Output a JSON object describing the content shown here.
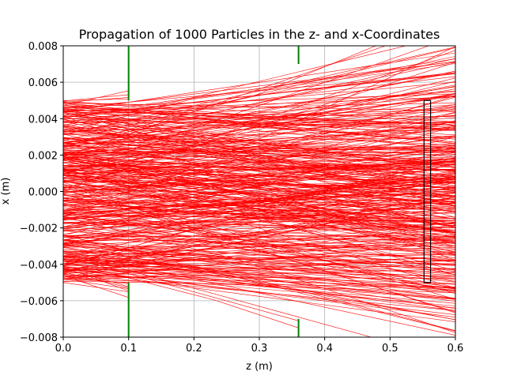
{
  "chart_data": {
    "type": "line",
    "title": "Propagation of 1000 Particles in the z- and x-Coordinates",
    "xlabel": "z (m)",
    "ylabel": "x (m)",
    "xlim": [
      0.0,
      0.6
    ],
    "ylim": [
      -0.008,
      0.008
    ],
    "xticks": [
      "0.0",
      "0.1",
      "0.2",
      "0.3",
      "0.4",
      "0.5",
      "0.6"
    ],
    "yticks": [
      "0.008",
      "0.006",
      "0.004",
      "0.002",
      "0.000",
      "−0.002",
      "−0.004",
      "−0.006",
      "−0.008"
    ],
    "grid": true,
    "series": [
      {
        "style": "particle trajectories",
        "color": "#ff0000",
        "count": 1000,
        "initial_x_range": [
          -0.005,
          0.005
        ],
        "divergence_range": [
          -0.02,
          0.02
        ]
      }
    ],
    "apertures": [
      {
        "z": 0.1,
        "opening": [
          -0.005,
          0.005
        ],
        "color": "#008000"
      },
      {
        "z": 0.36,
        "opening": [
          -0.007,
          0.007
        ],
        "color": "#008000"
      }
    ],
    "detector": {
      "z_range": [
        0.552,
        0.562
      ],
      "x_range": [
        -0.005,
        0.005
      ],
      "color": "#000000"
    }
  }
}
